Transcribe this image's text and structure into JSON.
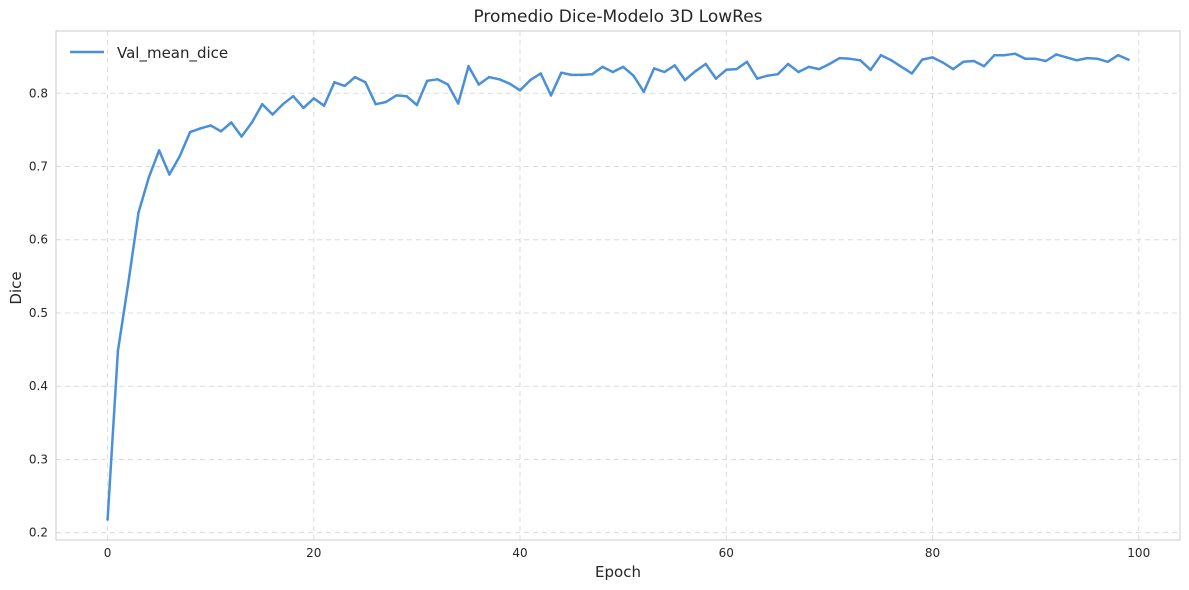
{
  "chart_data": {
    "type": "line",
    "title": "Promedio Dice-Modelo 3D LowRes",
    "xlabel": "Epoch",
    "ylabel": "Dice",
    "xlim": [
      -5,
      104
    ],
    "ylim": [
      0.19,
      0.885
    ],
    "xticks": [
      0,
      20,
      40,
      60,
      80,
      100
    ],
    "yticks": [
      0.2,
      0.3,
      0.4,
      0.5,
      0.6,
      0.7,
      0.8
    ],
    "grid": true,
    "legend_position": "top-left",
    "series": [
      {
        "name": "Val_mean_dice",
        "color": "#4a90d9",
        "x": [
          0,
          1,
          2,
          3,
          4,
          5,
          6,
          7,
          8,
          9,
          10,
          11,
          12,
          13,
          14,
          15,
          16,
          17,
          18,
          19,
          20,
          21,
          22,
          23,
          24,
          25,
          26,
          27,
          28,
          29,
          30,
          31,
          32,
          33,
          34,
          35,
          36,
          37,
          38,
          39,
          40,
          41,
          42,
          43,
          44,
          45,
          46,
          47,
          48,
          49,
          50,
          51,
          52,
          53,
          54,
          55,
          56,
          57,
          58,
          59,
          60,
          61,
          62,
          63,
          64,
          65,
          66,
          67,
          68,
          69,
          70,
          71,
          72,
          73,
          74,
          75,
          76,
          77,
          78,
          79,
          80,
          81,
          82,
          83,
          84,
          85,
          86,
          87,
          88,
          89,
          90,
          91,
          92,
          93,
          94,
          95,
          96,
          97,
          98,
          99
        ],
        "y": [
          0.218,
          0.448,
          0.54,
          0.637,
          0.685,
          0.722,
          0.689,
          0.714,
          0.747,
          0.752,
          0.756,
          0.748,
          0.76,
          0.741,
          0.76,
          0.785,
          0.771,
          0.785,
          0.796,
          0.78,
          0.793,
          0.783,
          0.815,
          0.81,
          0.822,
          0.815,
          0.785,
          0.788,
          0.797,
          0.796,
          0.784,
          0.817,
          0.819,
          0.812,
          0.786,
          0.837,
          0.812,
          0.822,
          0.819,
          0.813,
          0.804,
          0.818,
          0.827,
          0.797,
          0.828,
          0.825,
          0.825,
          0.826,
          0.836,
          0.829,
          0.836,
          0.824,
          0.802,
          0.834,
          0.829,
          0.838,
          0.818,
          0.83,
          0.84,
          0.82,
          0.832,
          0.833,
          0.843,
          0.82,
          0.824,
          0.826,
          0.84,
          0.829,
          0.836,
          0.833,
          0.84,
          0.848,
          0.847,
          0.845,
          0.832,
          0.852,
          0.845,
          0.836,
          0.827,
          0.846,
          0.849,
          0.842,
          0.833,
          0.843,
          0.844,
          0.837,
          0.852,
          0.852,
          0.854,
          0.847,
          0.847,
          0.844,
          0.853,
          0.849,
          0.845,
          0.848,
          0.847,
          0.843,
          0.852,
          0.846
        ]
      }
    ]
  }
}
